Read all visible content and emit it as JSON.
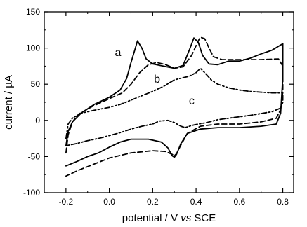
{
  "chart_data": {
    "type": "line",
    "xlabel_parts": [
      "potential / V ",
      "vs",
      " SCE"
    ],
    "ylabel": "current / µA",
    "xlim": [
      -0.3,
      0.85
    ],
    "ylim": [
      -100,
      150
    ],
    "xticks": [
      "-0.2",
      "0.0",
      "0.2",
      "0.4",
      "0.6",
      "0.8"
    ],
    "xtick_values": [
      -0.2,
      0.0,
      0.2,
      0.4,
      0.6,
      0.8
    ],
    "yticks": [
      "-100",
      "-50",
      "0",
      "50",
      "100",
      "150"
    ],
    "ytick_values": [
      -100,
      -50,
      0,
      50,
      100,
      150
    ],
    "series": [
      {
        "label": "a",
        "style": "solid",
        "points": [
          [
            -0.2,
            -35
          ],
          [
            -0.19,
            -15
          ],
          [
            -0.17,
            -2
          ],
          [
            -0.13,
            10
          ],
          [
            -0.07,
            22
          ],
          [
            0.0,
            32
          ],
          [
            0.05,
            42
          ],
          [
            0.08,
            58
          ],
          [
            0.1,
            80
          ],
          [
            0.12,
            100
          ],
          [
            0.13,
            110
          ],
          [
            0.15,
            100
          ],
          [
            0.17,
            85
          ],
          [
            0.2,
            78
          ],
          [
            0.25,
            75
          ],
          [
            0.3,
            72
          ],
          [
            0.34,
            76
          ],
          [
            0.37,
            98
          ],
          [
            0.39,
            114
          ],
          [
            0.41,
            108
          ],
          [
            0.43,
            90
          ],
          [
            0.46,
            78
          ],
          [
            0.5,
            77
          ],
          [
            0.55,
            82
          ],
          [
            0.6,
            82
          ],
          [
            0.65,
            86
          ],
          [
            0.7,
            92
          ],
          [
            0.75,
            97
          ],
          [
            0.8,
            106
          ],
          [
            0.8,
            60
          ],
          [
            0.79,
            10
          ],
          [
            0.77,
            -5
          ],
          [
            0.7,
            -8
          ],
          [
            0.6,
            -10
          ],
          [
            0.5,
            -10
          ],
          [
            0.42,
            -12
          ],
          [
            0.36,
            -18
          ],
          [
            0.33,
            -32
          ],
          [
            0.31,
            -47
          ],
          [
            0.3,
            -51
          ],
          [
            0.29,
            -49
          ],
          [
            0.27,
            -38
          ],
          [
            0.24,
            -30
          ],
          [
            0.18,
            -26
          ],
          [
            0.1,
            -26
          ],
          [
            0.05,
            -30
          ],
          [
            0.0,
            -37
          ],
          [
            -0.05,
            -45
          ],
          [
            -0.1,
            -50
          ],
          [
            -0.15,
            -57
          ],
          [
            -0.2,
            -63
          ]
        ]
      },
      {
        "label": "b",
        "style": "dashed",
        "points": [
          [
            -0.2,
            -45
          ],
          [
            -0.19,
            -20
          ],
          [
            -0.17,
            -2
          ],
          [
            -0.14,
            9
          ],
          [
            -0.08,
            19
          ],
          [
            0.0,
            30
          ],
          [
            0.06,
            38
          ],
          [
            0.1,
            50
          ],
          [
            0.14,
            66
          ],
          [
            0.18,
            77
          ],
          [
            0.22,
            80
          ],
          [
            0.26,
            77
          ],
          [
            0.3,
            72
          ],
          [
            0.34,
            74
          ],
          [
            0.38,
            90
          ],
          [
            0.41,
            110
          ],
          [
            0.42,
            115
          ],
          [
            0.44,
            113
          ],
          [
            0.46,
            100
          ],
          [
            0.48,
            88
          ],
          [
            0.52,
            84
          ],
          [
            0.6,
            84
          ],
          [
            0.7,
            84
          ],
          [
            0.78,
            85
          ],
          [
            0.8,
            75
          ],
          [
            0.8,
            40
          ],
          [
            0.79,
            15
          ],
          [
            0.77,
            3
          ],
          [
            0.7,
            -2
          ],
          [
            0.6,
            -5
          ],
          [
            0.5,
            -5
          ],
          [
            0.42,
            -8
          ],
          [
            0.36,
            -18
          ],
          [
            0.33,
            -34
          ],
          [
            0.31,
            -46
          ],
          [
            0.3,
            -49
          ],
          [
            0.29,
            -47
          ],
          [
            0.26,
            -43
          ],
          [
            0.2,
            -42
          ],
          [
            0.1,
            -45
          ],
          [
            0.0,
            -52
          ],
          [
            -0.05,
            -58
          ],
          [
            -0.1,
            -64
          ],
          [
            -0.15,
            -70
          ],
          [
            -0.2,
            -77
          ]
        ]
      },
      {
        "label": "c",
        "style": "dash-dot-dot",
        "points": [
          [
            -0.2,
            -25
          ],
          [
            -0.19,
            -5
          ],
          [
            -0.17,
            3
          ],
          [
            -0.13,
            10
          ],
          [
            -0.07,
            14
          ],
          [
            0.0,
            18
          ],
          [
            0.05,
            22
          ],
          [
            0.1,
            28
          ],
          [
            0.15,
            34
          ],
          [
            0.2,
            40
          ],
          [
            0.25,
            47
          ],
          [
            0.3,
            56
          ],
          [
            0.34,
            59
          ],
          [
            0.37,
            61
          ],
          [
            0.4,
            66
          ],
          [
            0.42,
            72
          ],
          [
            0.44,
            66
          ],
          [
            0.47,
            56
          ],
          [
            0.5,
            50
          ],
          [
            0.55,
            45
          ],
          [
            0.6,
            42
          ],
          [
            0.65,
            40
          ],
          [
            0.7,
            39
          ],
          [
            0.75,
            38
          ],
          [
            0.8,
            38
          ],
          [
            0.8,
            25
          ],
          [
            0.79,
            17
          ],
          [
            0.75,
            12
          ],
          [
            0.65,
            7
          ],
          [
            0.55,
            3
          ],
          [
            0.5,
            1
          ],
          [
            0.45,
            -3
          ],
          [
            0.41,
            -5
          ],
          [
            0.38,
            -7
          ],
          [
            0.35,
            -10
          ],
          [
            0.33,
            -8
          ],
          [
            0.3,
            -3
          ],
          [
            0.27,
            0
          ],
          [
            0.23,
            -1
          ],
          [
            0.2,
            -5
          ],
          [
            0.15,
            -8
          ],
          [
            0.1,
            -12
          ],
          [
            0.05,
            -17
          ],
          [
            0.0,
            -21
          ],
          [
            -0.05,
            -25
          ],
          [
            -0.1,
            -28
          ],
          [
            -0.15,
            -32
          ],
          [
            -0.2,
            -35
          ]
        ]
      }
    ],
    "curve_label_positions": [
      {
        "label": "a",
        "x": 0.04,
        "y": 89
      },
      {
        "label": "b",
        "x": 0.22,
        "y": 52
      },
      {
        "label": "c",
        "x": 0.38,
        "y": 22
      }
    ]
  }
}
